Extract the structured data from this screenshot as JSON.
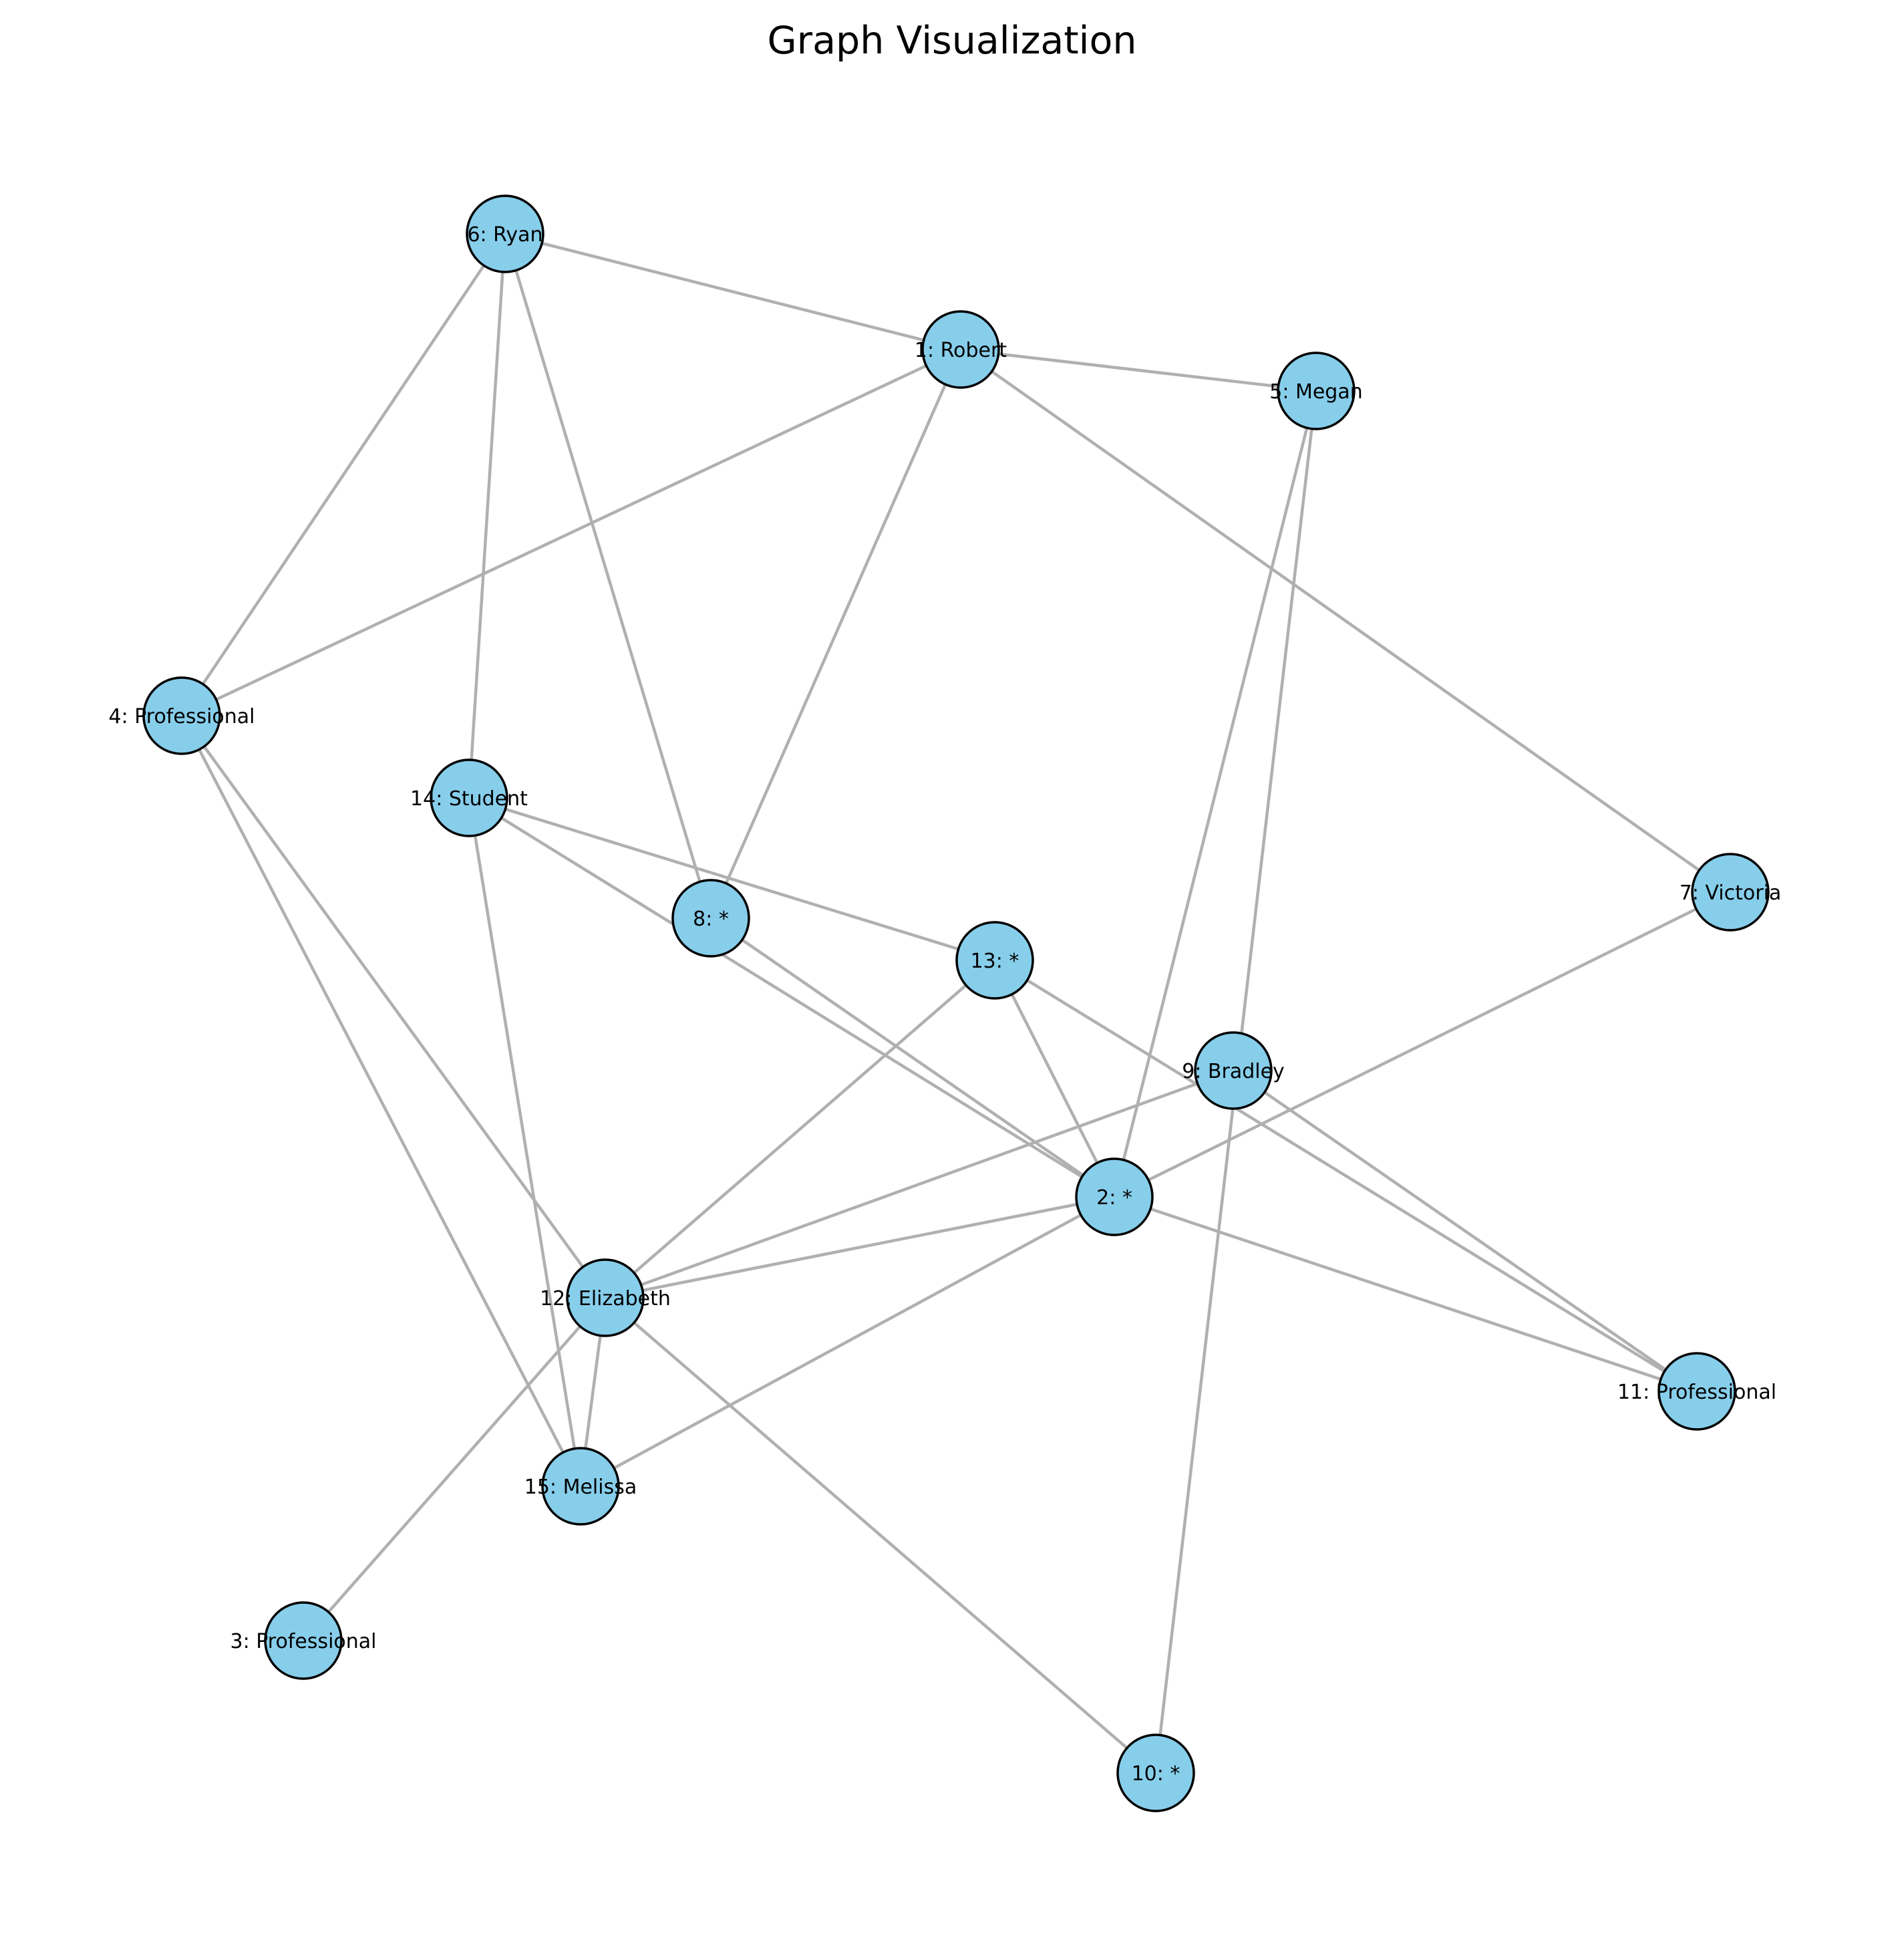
{
  "title": "Graph Visualization",
  "colors": {
    "node_fill": "#87ceeb",
    "node_stroke": "#000000",
    "edge": "#b0b0b0",
    "background": "#ffffff"
  },
  "nodes": [
    {
      "id": 1,
      "label": "1: Robert"
    },
    {
      "id": 2,
      "label": "2: *"
    },
    {
      "id": 3,
      "label": "3: Professional"
    },
    {
      "id": 4,
      "label": "4: Professional"
    },
    {
      "id": 5,
      "label": "5: Megan"
    },
    {
      "id": 6,
      "label": "6: Ryan"
    },
    {
      "id": 7,
      "label": "7: Victoria"
    },
    {
      "id": 8,
      "label": "8: *"
    },
    {
      "id": 9,
      "label": "9: Bradley"
    },
    {
      "id": 10,
      "label": "10: *"
    },
    {
      "id": 11,
      "label": "11: Professional"
    },
    {
      "id": 12,
      "label": "12: Elizabeth"
    },
    {
      "id": 13,
      "label": "13: *"
    },
    {
      "id": 14,
      "label": "14: Student"
    },
    {
      "id": 15,
      "label": "15: Melissa"
    }
  ],
  "edges": [
    [
      6,
      1
    ],
    [
      6,
      4
    ],
    [
      6,
      14
    ],
    [
      6,
      8
    ],
    [
      1,
      5
    ],
    [
      1,
      4
    ],
    [
      1,
      8
    ],
    [
      1,
      7
    ],
    [
      5,
      2
    ],
    [
      5,
      10
    ],
    [
      4,
      12
    ],
    [
      4,
      15
    ],
    [
      14,
      13
    ],
    [
      14,
      2
    ],
    [
      14,
      15
    ],
    [
      8,
      2
    ],
    [
      13,
      2
    ],
    [
      13,
      11
    ],
    [
      13,
      12
    ],
    [
      7,
      2
    ],
    [
      9,
      12
    ],
    [
      9,
      11
    ],
    [
      2,
      12
    ],
    [
      2,
      15
    ],
    [
      2,
      11
    ],
    [
      12,
      15
    ],
    [
      12,
      3
    ],
    [
      12,
      10
    ]
  ]
}
